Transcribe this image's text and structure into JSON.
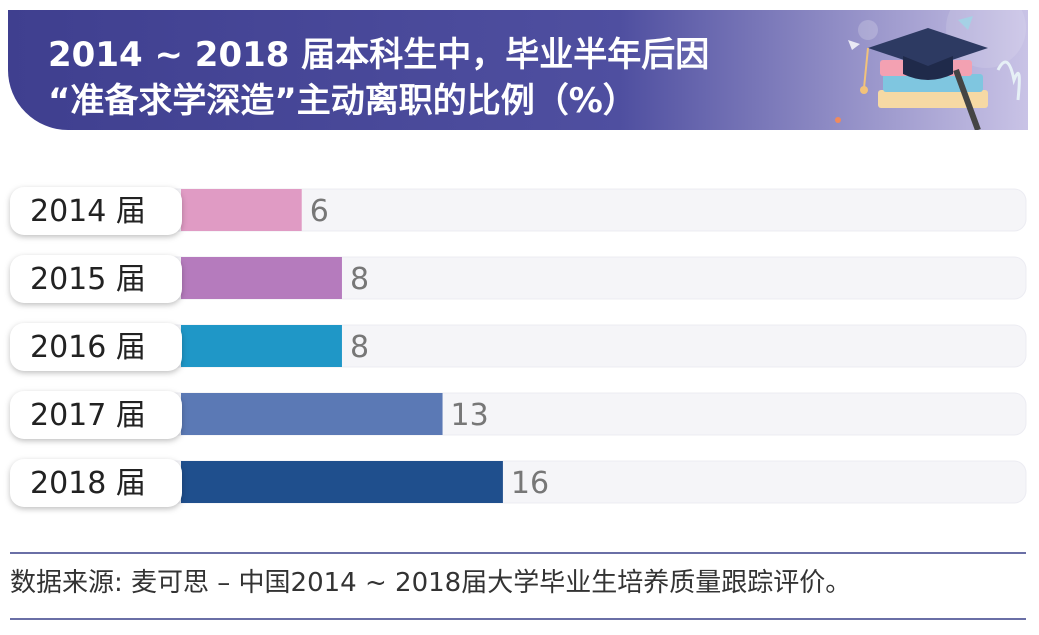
{
  "title": {
    "line1": "2014 ~ 2018 届本科生中，毕业半年后因",
    "line2": "“准备求学深造”主动离职的比例（%）"
  },
  "chart_data": {
    "type": "bar",
    "orientation": "horizontal",
    "categories": [
      "2014 届",
      "2015 届",
      "2016 届",
      "2017 届",
      "2018 届"
    ],
    "values": [
      6,
      8,
      8,
      13,
      16
    ],
    "value_labels": [
      "6",
      "8",
      "8",
      "13",
      "16"
    ],
    "colors": [
      "#e09bc4",
      "#b57bbd",
      "#1f97c7",
      "#5b79b5",
      "#1f4f8d"
    ],
    "title": "2014 ~ 2018 届本科生中，毕业半年后因“准备求学深造”主动离职的比例（%）",
    "xlim": [
      0,
      42
    ],
    "grid": false,
    "legend": "none"
  },
  "source": "数据来源: 麦可思 – 中国2014 ~ 2018届大学毕业生培养质量跟踪评价。",
  "colors": {
    "banner": "#4a4a9b",
    "track": "#f5f5f8",
    "label_text": "#222222",
    "value_text": "#777777",
    "separator": "#6a6fa6"
  }
}
